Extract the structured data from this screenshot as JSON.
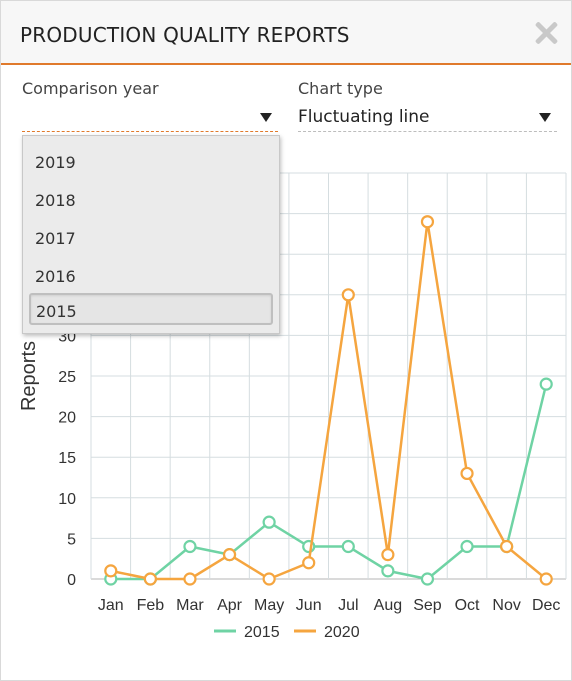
{
  "header": {
    "title": "PRODUCTION QUALITY REPORTS"
  },
  "filters": {
    "comparison_year": {
      "label": "Comparison year",
      "value": "",
      "options": [
        "2019",
        "2018",
        "2017",
        "2016",
        "2015"
      ],
      "highlighted": "2015"
    },
    "chart_type": {
      "label": "Chart type",
      "value": "Fluctuating line"
    }
  },
  "colors": {
    "series_2015": "#6fd3a4",
    "series_2020": "#f5a53f",
    "accent": "#e07a2c"
  },
  "chart_data": {
    "type": "line",
    "title": "",
    "xlabel": "",
    "ylabel": "Reports",
    "ylim": [
      0,
      50
    ],
    "y_ticks": [
      "0",
      "5",
      "10",
      "15",
      "20",
      "25",
      "30"
    ],
    "categories": [
      "Jan",
      "Feb",
      "Mar",
      "Apr",
      "May",
      "Jun",
      "Jul",
      "Aug",
      "Sep",
      "Oct",
      "Nov",
      "Dec"
    ],
    "series": [
      {
        "name": "2015",
        "color": "#6fd3a4",
        "values": [
          0,
          0,
          4,
          3,
          7,
          4,
          4,
          1,
          0,
          4,
          4,
          24
        ]
      },
      {
        "name": "2020",
        "color": "#f5a53f",
        "values": [
          1,
          0,
          0,
          3,
          0,
          2,
          35,
          3,
          44,
          13,
          4,
          0
        ]
      }
    ],
    "grid": true,
    "legend": "bottom"
  }
}
